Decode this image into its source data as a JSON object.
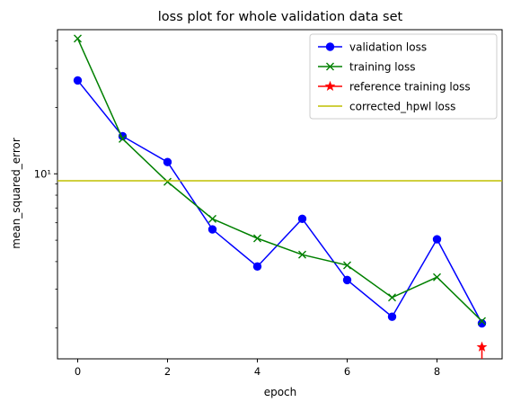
{
  "chart_data": {
    "type": "line",
    "title": "loss plot for whole validation data set",
    "xlabel": "epoch",
    "ylabel": "mean_squared_error",
    "yscale": "log",
    "xlim": [
      -0.45,
      9.45
    ],
    "ylim": [
      1.45,
      45
    ],
    "xticks": [
      0,
      2,
      4,
      6,
      8
    ],
    "xtick_labels": [
      "0",
      "2",
      "4",
      "6",
      "8"
    ],
    "yticks": [
      10
    ],
    "ytick_labels": [
      "10¹"
    ],
    "legend_position": "top-right",
    "series": [
      {
        "name": "validation loss",
        "color": "#0000ff",
        "marker": "circle",
        "x": [
          0,
          1,
          2,
          3,
          4,
          5,
          6,
          7,
          8,
          9
        ],
        "y": [
          26.5,
          14.8,
          11.3,
          5.6,
          3.8,
          6.25,
          3.3,
          2.25,
          5.05,
          2.1
        ]
      },
      {
        "name": "training loss",
        "color": "#008000",
        "marker": "x",
        "x": [
          0,
          1,
          2,
          3,
          4,
          5,
          6,
          7,
          8,
          9
        ],
        "y": [
          41.0,
          14.4,
          9.2,
          6.25,
          5.1,
          4.3,
          3.85,
          2.75,
          3.4,
          2.15
        ]
      },
      {
        "name": "reference training loss",
        "color": "#ff0000",
        "marker": "star",
        "x": [
          9
        ],
        "y": [
          1.64
        ]
      },
      {
        "name": "corrected_hpwl loss",
        "color": "#bfbf00",
        "marker": "hline",
        "y": [
          9.3
        ]
      }
    ]
  }
}
